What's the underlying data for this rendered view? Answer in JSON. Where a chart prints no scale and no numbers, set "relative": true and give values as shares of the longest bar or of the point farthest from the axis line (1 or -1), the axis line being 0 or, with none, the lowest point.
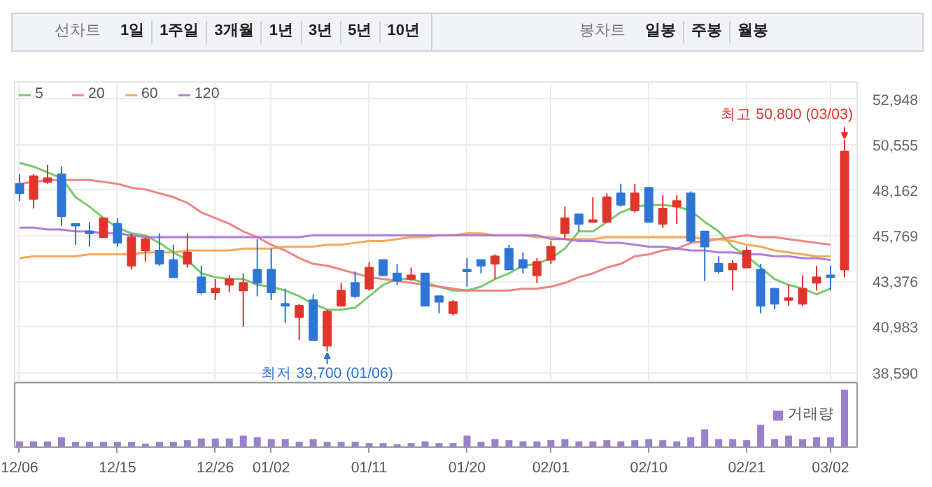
{
  "chart_data": [
    {
      "type": "other",
      "title": "선차트",
      "categories": [
        "1일",
        "1주일",
        "3개월",
        "1년",
        "3년",
        "5년",
        "10년"
      ]
    },
    {
      "type": "other",
      "title": "봉차트",
      "categories": [
        "일봉",
        "주봉",
        "월봉"
      ]
    },
    {
      "type": "candlestick",
      "categories": [
        null,
        null,
        null,
        null,
        null,
        null,
        null,
        null,
        null,
        null,
        null,
        null,
        null,
        null,
        null,
        null,
        null,
        null,
        null,
        null,
        null,
        null,
        null,
        null,
        null,
        null,
        null,
        null,
        null,
        null,
        null,
        null,
        null,
        null,
        null,
        null,
        null,
        null,
        null,
        null,
        null,
        null,
        null,
        null,
        null,
        null,
        null,
        null,
        null,
        null,
        null,
        null,
        null,
        null,
        null,
        null,
        null,
        null,
        null,
        null
      ],
      "ohlc": [
        [
          48500,
          49000,
          47600,
          48000
        ],
        [
          47700,
          49000,
          47200,
          48900
        ],
        [
          48600,
          49500,
          48500,
          48800
        ],
        [
          49000,
          49400,
          46300,
          46800
        ],
        [
          46400,
          46400,
          45300,
          46300
        ],
        [
          46000,
          46500,
          45200,
          45900
        ],
        [
          45700,
          46700,
          45700,
          46700
        ],
        [
          46400,
          46700,
          45200,
          45400
        ],
        [
          44200,
          45900,
          44000,
          45700
        ],
        [
          45000,
          45700,
          44400,
          45600
        ],
        [
          45000,
          45900,
          44200,
          44300
        ],
        [
          44500,
          45300,
          43600,
          43600
        ],
        [
          44300,
          45900,
          44100,
          44900
        ],
        [
          43600,
          44200,
          42700,
          42800
        ],
        [
          42800,
          43500,
          42400,
          43000
        ],
        [
          43200,
          43700,
          42800,
          43500
        ],
        [
          42900,
          43800,
          41000,
          43300
        ],
        [
          44000,
          45600,
          42600,
          43300
        ],
        [
          44000,
          45100,
          42400,
          42800
        ],
        [
          42200,
          43000,
          41200,
          42100
        ],
        [
          41500,
          42200,
          40300,
          42100
        ],
        [
          42400,
          42700,
          40300,
          40300
        ],
        [
          40000,
          41900,
          39700,
          41800
        ],
        [
          42100,
          43300,
          42100,
          42900
        ],
        [
          43300,
          43900,
          42500,
          42600
        ],
        [
          43000,
          44400,
          42900,
          44100
        ],
        [
          44500,
          44500,
          43700,
          43700
        ],
        [
          43800,
          44300,
          43200,
          43400
        ],
        [
          43500,
          44100,
          43400,
          43700
        ],
        [
          43800,
          43800,
          42100,
          42100
        ],
        [
          42600,
          42600,
          41700,
          42300
        ],
        [
          41700,
          42400,
          41600,
          42300
        ],
        [
          44000,
          44600,
          43100,
          43900
        ],
        [
          44500,
          44500,
          43800,
          44200
        ],
        [
          44300,
          44800,
          43500,
          44700
        ],
        [
          45100,
          45300,
          44000,
          44000
        ],
        [
          44500,
          44900,
          43800,
          44100
        ],
        [
          43700,
          44600,
          43300,
          44400
        ],
        [
          44500,
          45500,
          44300,
          45200
        ],
        [
          45900,
          47300,
          45600,
          46700
        ],
        [
          46900,
          46900,
          46000,
          46400
        ],
        [
          46500,
          47800,
          46500,
          46600
        ],
        [
          46500,
          48000,
          46500,
          47800
        ],
        [
          48000,
          48500,
          47300,
          47400
        ],
        [
          47100,
          48500,
          47000,
          48000
        ],
        [
          48300,
          48300,
          46500,
          46500
        ],
        [
          46400,
          47900,
          46200,
          47200
        ],
        [
          47300,
          47900,
          46400,
          47600
        ],
        [
          48000,
          48100,
          45400,
          45500
        ],
        [
          46000,
          46000,
          43400,
          45200
        ],
        [
          44300,
          44700,
          43800,
          43900
        ],
        [
          44000,
          44500,
          42900,
          44300
        ],
        [
          44100,
          45200,
          44100,
          45000
        ],
        [
          44000,
          44300,
          41700,
          42100
        ],
        [
          43000,
          43000,
          41900,
          42200
        ],
        [
          42400,
          43200,
          42100,
          42500
        ],
        [
          42200,
          43700,
          42100,
          43000
        ],
        [
          43300,
          44200,
          42900,
          43600
        ],
        [
          43700,
          44200,
          42900,
          43600
        ],
        [
          44000,
          50800,
          43600,
          50200
        ]
      ],
      "colors": [
        "#2f75d6",
        "#e0352b",
        "#e0352b",
        "#2f75d6",
        "#2f75d6",
        "#2f75d6",
        "#e0352b",
        "#2f75d6",
        "#e0352b",
        "#e0352b",
        "#2f75d6",
        "#2f75d6",
        "#e0352b",
        "#2f75d6",
        "#e0352b",
        "#e0352b",
        "#e0352b",
        "#2f75d6",
        "#2f75d6",
        "#2f75d6",
        "#e0352b",
        "#2f75d6",
        "#e0352b",
        "#e0352b",
        "#2f75d6",
        "#e0352b",
        "#2f75d6",
        "#2f75d6",
        "#e0352b",
        "#2f75d6",
        "#2f75d6",
        "#e0352b",
        "#2f75d6",
        "#2f75d6",
        "#e0352b",
        "#2f75d6",
        "#2f75d6",
        "#e0352b",
        "#e0352b",
        "#e0352b",
        "#2f75d6",
        "#e0352b",
        "#e0352b",
        "#2f75d6",
        "#e0352b",
        "#2f75d6",
        "#e0352b",
        "#e0352b",
        "#2f75d6",
        "#2f75d6",
        "#2f75d6",
        "#e0352b",
        "#e0352b",
        "#2f75d6",
        "#2f75d6",
        "#e0352b",
        "#e0352b",
        "#e0352b",
        "#2f75d6",
        "#e0352b"
      ],
      "series": [
        {
          "name": "5",
          "type": "line",
          "color": "#6cc35a",
          "values": [
            49600,
            49400,
            49100,
            48800,
            47800,
            47300,
            46700,
            46200,
            45900,
            45800,
            45400,
            44900,
            44500,
            43800,
            43600,
            43500,
            43500,
            43200,
            43100,
            42900,
            42600,
            42200,
            41900,
            41900,
            42000,
            42600,
            43200,
            43500,
            43500,
            43300,
            43100,
            42900,
            42900,
            43100,
            43500,
            43800,
            44200,
            44300,
            44600,
            45100,
            46000,
            46000,
            46500,
            47000,
            47300,
            47400,
            47400,
            47300,
            47100,
            46500,
            46000,
            45200,
            44700,
            44100,
            43500,
            43200,
            43000,
            42700,
            43000,
            null
          ]
        },
        {
          "name": "20",
          "type": "line",
          "color": "#f07878",
          "values": [
            48500,
            48600,
            48700,
            48700,
            48700,
            48700,
            48600,
            48500,
            48300,
            48200,
            48000,
            47800,
            47500,
            47000,
            46700,
            46400,
            46000,
            45700,
            45300,
            45000,
            44600,
            44300,
            44200,
            44000,
            43800,
            43600,
            43500,
            43400,
            43300,
            43200,
            43100,
            43000,
            42900,
            42900,
            42900,
            42900,
            43000,
            43000,
            43100,
            43300,
            43600,
            43800,
            44100,
            44300,
            44700,
            44800,
            45000,
            45100,
            45400,
            45500,
            45600,
            45700,
            45800,
            45700,
            45700,
            45600,
            45500,
            45400,
            45300,
            null
          ]
        },
        {
          "name": "60",
          "type": "line",
          "color": "#f5a04a",
          "values": [
            44600,
            44700,
            44700,
            44700,
            44700,
            44800,
            44800,
            44800,
            44800,
            44900,
            44900,
            44900,
            45000,
            45000,
            45000,
            45000,
            45100,
            45100,
            45100,
            45200,
            45200,
            45200,
            45300,
            45300,
            45400,
            45500,
            45500,
            45600,
            45700,
            45700,
            45800,
            45800,
            45900,
            45900,
            45800,
            45800,
            45800,
            45700,
            45700,
            45600,
            45600,
            45600,
            45700,
            45700,
            45700,
            45700,
            45700,
            45700,
            45700,
            45600,
            45600,
            45500,
            45300,
            45200,
            45000,
            44900,
            44800,
            44700,
            44700,
            null
          ]
        },
        {
          "name": "120",
          "type": "line",
          "color": "#a870d8",
          "values": [
            46200,
            46200,
            46100,
            46100,
            46000,
            46000,
            45900,
            45900,
            45800,
            45700,
            45700,
            45700,
            45700,
            45700,
            45700,
            45700,
            45700,
            45700,
            45700,
            45700,
            45700,
            45800,
            45800,
            45800,
            45800,
            45800,
            45800,
            45800,
            45800,
            45800,
            45800,
            45800,
            45800,
            45800,
            45800,
            45800,
            45800,
            45800,
            45600,
            45600,
            45500,
            45500,
            45400,
            45400,
            45300,
            45200,
            45200,
            45100,
            45000,
            45000,
            44900,
            44900,
            44800,
            44800,
            44700,
            44700,
            44600,
            44600,
            44500,
            null
          ]
        }
      ],
      "ylim": [
        38060,
        53850
      ],
      "yticks": [
        {
          "value": 38590,
          "label": "38,590"
        },
        {
          "value": 40983,
          "label": "40,983"
        },
        {
          "value": 43376,
          "label": "43,376"
        },
        {
          "value": 45769,
          "label": "45,769"
        },
        {
          "value": 48162,
          "label": "48,162"
        },
        {
          "value": 50555,
          "label": "50,555"
        },
        {
          "value": 52948,
          "label": "52,948"
        }
      ],
      "grid": true,
      "legend": "top left",
      "tick_labels": "y",
      "annotations": [
        "최고 50,800 (03/03)",
        "최저 39,700 (01/06)"
      ]
    },
    {
      "type": "bar",
      "relative": true,
      "categories": [
        "12/06",
        null,
        null,
        null,
        null,
        null,
        null,
        "12/15",
        null,
        null,
        null,
        null,
        null,
        null,
        "12/26",
        null,
        null,
        null,
        "01/02",
        null,
        null,
        null,
        null,
        null,
        null,
        "01/11",
        null,
        null,
        null,
        null,
        null,
        null,
        "01/20",
        null,
        null,
        null,
        null,
        null,
        "02/01",
        null,
        null,
        null,
        null,
        null,
        null,
        "02/10",
        null,
        null,
        null,
        null,
        null,
        null,
        "02/21",
        null,
        null,
        null,
        null,
        null,
        "03/02",
        null
      ],
      "series": [
        {
          "name": "거래량",
          "color": "#9a80cc",
          "values": [
            0.1,
            0.1,
            0.1,
            0.17,
            0.09,
            0.09,
            0.09,
            0.09,
            0.09,
            0.06,
            0.09,
            0.09,
            0.12,
            0.15,
            0.15,
            0.15,
            0.2,
            0.17,
            0.14,
            0.14,
            0.09,
            0.14,
            0.09,
            0.09,
            0.09,
            0.07,
            0.07,
            0.05,
            0.07,
            0.1,
            0.07,
            0.07,
            0.2,
            0.09,
            0.14,
            0.12,
            0.1,
            0.1,
            0.12,
            0.14,
            0.1,
            0.1,
            0.12,
            0.1,
            0.12,
            0.14,
            0.12,
            0.1,
            0.17,
            0.31,
            0.14,
            0.14,
            0.12,
            0.39,
            0.14,
            0.2,
            0.14,
            0.17,
            0.17,
            1
          ]
        }
      ],
      "legend": "top right",
      "tick_labels": "x"
    }
  ]
}
